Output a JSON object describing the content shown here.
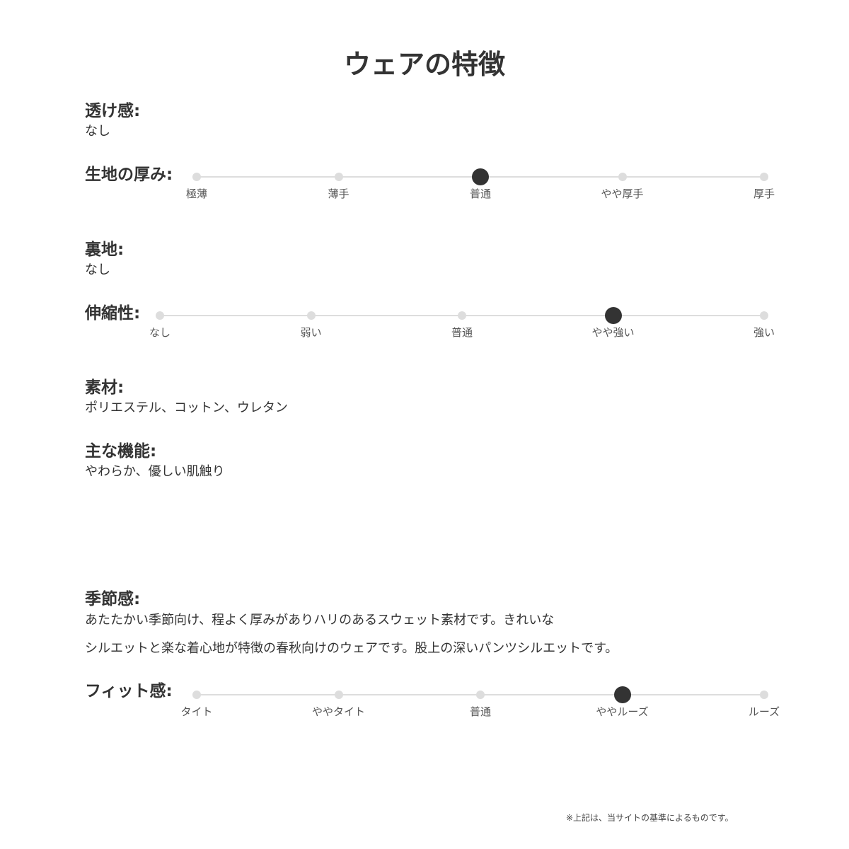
{
  "title": "ウェアの特徴",
  "sheer": {
    "label": "透け感:",
    "value": "なし"
  },
  "thickness": {
    "label": "生地の厚み:",
    "stops": [
      "極薄",
      "薄手",
      "普通",
      "やや厚手",
      "厚手"
    ],
    "selected": "普通"
  },
  "lining": {
    "label": "裏地:",
    "value": "なし"
  },
  "stretch": {
    "label": "伸縮性:",
    "stops": [
      "なし",
      "弱い",
      "普通",
      "やや強い",
      "強い"
    ],
    "selected": "やや強い"
  },
  "material": {
    "label": "素材:",
    "value": "ポリエステル、コットン、ウレタン"
  },
  "function": {
    "label": "主な機能:",
    "value": "やわらか、優しい肌触り"
  },
  "season": {
    "label": "季節感:",
    "lines": [
      "あたたかい季節向け、程よく厚みがありハリのあるスウェット素材です。きれいな",
      "シルエットと楽な着心地が特徴の春秋向けのウェアです。股上の深いパンツシルエットです。"
    ]
  },
  "fit": {
    "label": "フィット感:",
    "stops": [
      "タイト",
      "ややタイト",
      "普通",
      "ややルーズ",
      "ルーズ"
    ],
    "selected": "ややルーズ"
  },
  "note": "※上記は、当サイトの基準によるものです。",
  "colors": {
    "active": "#333333",
    "inactive": "#dddddd"
  }
}
